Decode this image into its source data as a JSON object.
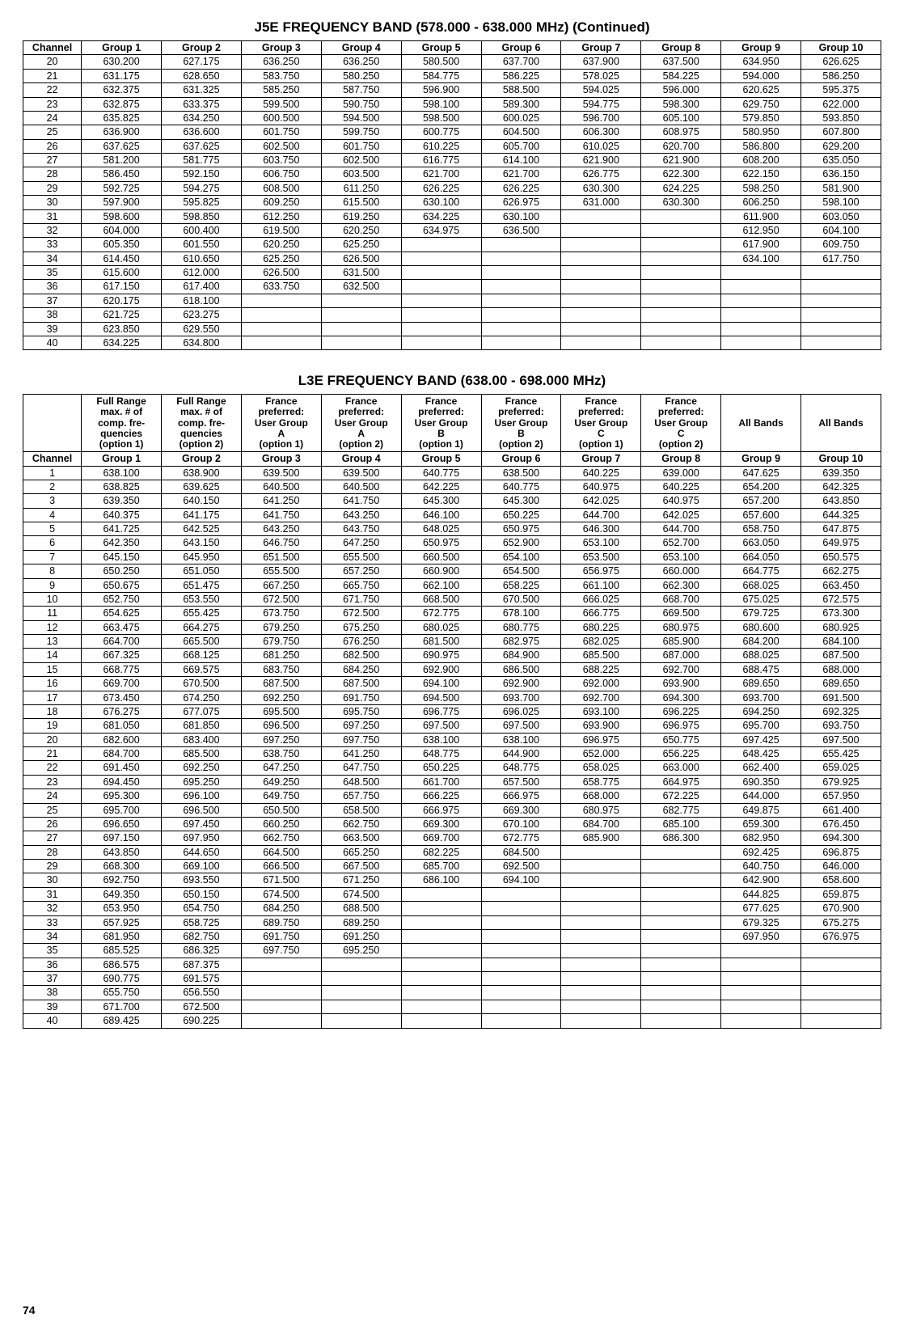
{
  "page_number": "74",
  "table1": {
    "title": "J5E FREQUENCY BAND (578.000 - 638.000 MHz) (Continued)",
    "headers": [
      "Channel",
      "Group 1",
      "Group 2",
      "Group 3",
      "Group 4",
      "Group 5",
      "Group 6",
      "Group 7",
      "Group 8",
      "Group 9",
      "Group 10"
    ],
    "rows": [
      [
        "20",
        "630.200",
        "627.175",
        "636.250",
        "636.250",
        "580.500",
        "637.700",
        "637.900",
        "637.500",
        "634.950",
        "626.625"
      ],
      [
        "21",
        "631.175",
        "628.650",
        "583.750",
        "580.250",
        "584.775",
        "586.225",
        "578.025",
        "584.225",
        "594.000",
        "586.250"
      ],
      [
        "22",
        "632.375",
        "631.325",
        "585.250",
        "587.750",
        "596.900",
        "588.500",
        "594.025",
        "596.000",
        "620.625",
        "595.375"
      ],
      [
        "23",
        "632.875",
        "633.375",
        "599.500",
        "590.750",
        "598.100",
        "589.300",
        "594.775",
        "598.300",
        "629.750",
        "622.000"
      ],
      [
        "24",
        "635.825",
        "634.250",
        "600.500",
        "594.500",
        "598.500",
        "600.025",
        "596.700",
        "605.100",
        "579.850",
        "593.850"
      ],
      [
        "25",
        "636.900",
        "636.600",
        "601.750",
        "599.750",
        "600.775",
        "604.500",
        "606.300",
        "608.975",
        "580.950",
        "607.800"
      ],
      [
        "26",
        "637.625",
        "637.625",
        "602.500",
        "601.750",
        "610.225",
        "605.700",
        "610.025",
        "620.700",
        "586.800",
        "629.200"
      ],
      [
        "27",
        "581.200",
        "581.775",
        "603.750",
        "602.500",
        "616.775",
        "614.100",
        "621.900",
        "621.900",
        "608.200",
        "635.050"
      ],
      [
        "28",
        "586.450",
        "592.150",
        "606.750",
        "603.500",
        "621.700",
        "621.700",
        "626.775",
        "622.300",
        "622.150",
        "636.150"
      ],
      [
        "29",
        "592.725",
        "594.275",
        "608.500",
        "611.250",
        "626.225",
        "626.225",
        "630.300",
        "624.225",
        "598.250",
        "581.900"
      ],
      [
        "30",
        "597.900",
        "595.825",
        "609.250",
        "615.500",
        "630.100",
        "626.975",
        "631.000",
        "630.300",
        "606.250",
        "598.100"
      ],
      [
        "31",
        "598.600",
        "598.850",
        "612.250",
        "619.250",
        "634.225",
        "630.100",
        "",
        "",
        "611.900",
        "603.050"
      ],
      [
        "32",
        "604.000",
        "600.400",
        "619.500",
        "620.250",
        "634.975",
        "636.500",
        "",
        "",
        "612.950",
        "604.100"
      ],
      [
        "33",
        "605.350",
        "601.550",
        "620.250",
        "625.250",
        "",
        "",
        "",
        "",
        "617.900",
        "609.750"
      ],
      [
        "34",
        "614.450",
        "610.650",
        "625.250",
        "626.500",
        "",
        "",
        "",
        "",
        "634.100",
        "617.750"
      ],
      [
        "35",
        "615.600",
        "612.000",
        "626.500",
        "631.500",
        "",
        "",
        "",
        "",
        "",
        ""
      ],
      [
        "36",
        "617.150",
        "617.400",
        "633.750",
        "632.500",
        "",
        "",
        "",
        "",
        "",
        ""
      ],
      [
        "37",
        "620.175",
        "618.100",
        "",
        "",
        "",
        "",
        "",
        "",
        "",
        ""
      ],
      [
        "38",
        "621.725",
        "623.275",
        "",
        "",
        "",
        "",
        "",
        "",
        "",
        ""
      ],
      [
        "39",
        "623.850",
        "629.550",
        "",
        "",
        "",
        "",
        "",
        "",
        "",
        ""
      ],
      [
        "40",
        "634.225",
        "634.800",
        "",
        "",
        "",
        "",
        "",
        "",
        "",
        ""
      ]
    ]
  },
  "table2": {
    "title": "L3E FREQUENCY BAND (638.00 - 698.000 MHz)",
    "top_headers": [
      "",
      "Full Range max. # of comp. fre- quencies (option 1)",
      "Full Range max. # of comp. fre- quencies (option 2)",
      "France preferred: User Group A (option 1)",
      "France preferred: User Group A (option 2)",
      "France preferred: User Group B (option 1)",
      "France preferred: User Group B (option 2)",
      "France preferred: User Group C (option 1)",
      "France preferred: User Group C (option 2)",
      "All Bands",
      "All Bands"
    ],
    "headers": [
      "Channel",
      "Group 1",
      "Group 2",
      "Group 3",
      "Group 4",
      "Group 5",
      "Group 6",
      "Group 7",
      "Group 8",
      "Group 9",
      "Group 10"
    ],
    "rows": [
      [
        "1",
        "638.100",
        "638.900",
        "639.500",
        "639.500",
        "640.775",
        "638.500",
        "640.225",
        "639.000",
        "647.625",
        "639.350"
      ],
      [
        "2",
        "638.825",
        "639.625",
        "640.500",
        "640.500",
        "642.225",
        "640.775",
        "640.975",
        "640.225",
        "654.200",
        "642.325"
      ],
      [
        "3",
        "639.350",
        "640.150",
        "641.250",
        "641.750",
        "645.300",
        "645.300",
        "642.025",
        "640.975",
        "657.200",
        "643.850"
      ],
      [
        "4",
        "640.375",
        "641.175",
        "641.750",
        "643.250",
        "646.100",
        "650.225",
        "644.700",
        "642.025",
        "657.600",
        "644.325"
      ],
      [
        "5",
        "641.725",
        "642.525",
        "643.250",
        "643.750",
        "648.025",
        "650.975",
        "646.300",
        "644.700",
        "658.750",
        "647.875"
      ],
      [
        "6",
        "642.350",
        "643.150",
        "646.750",
        "647.250",
        "650.975",
        "652.900",
        "653.100",
        "652.700",
        "663.050",
        "649.975"
      ],
      [
        "7",
        "645.150",
        "645.950",
        "651.500",
        "655.500",
        "660.500",
        "654.100",
        "653.500",
        "653.100",
        "664.050",
        "650.575"
      ],
      [
        "8",
        "650.250",
        "651.050",
        "655.500",
        "657.250",
        "660.900",
        "654.500",
        "656.975",
        "660.000",
        "664.775",
        "662.275"
      ],
      [
        "9",
        "650.675",
        "651.475",
        "667.250",
        "665.750",
        "662.100",
        "658.225",
        "661.100",
        "662.300",
        "668.025",
        "663.450"
      ],
      [
        "10",
        "652.750",
        "653.550",
        "672.500",
        "671.750",
        "668.500",
        "670.500",
        "666.025",
        "668.700",
        "675.025",
        "672.575"
      ],
      [
        "11",
        "654.625",
        "655.425",
        "673.750",
        "672.500",
        "672.775",
        "678.100",
        "666.775",
        "669.500",
        "679.725",
        "673.300"
      ],
      [
        "12",
        "663.475",
        "664.275",
        "679.250",
        "675.250",
        "680.025",
        "680.775",
        "680.225",
        "680.975",
        "680.600",
        "680.925"
      ],
      [
        "13",
        "664.700",
        "665.500",
        "679.750",
        "676.250",
        "681.500",
        "682.975",
        "682.025",
        "685.900",
        "684.200",
        "684.100"
      ],
      [
        "14",
        "667.325",
        "668.125",
        "681.250",
        "682.500",
        "690.975",
        "684.900",
        "685.500",
        "687.000",
        "688.025",
        "687.500"
      ],
      [
        "15",
        "668.775",
        "669.575",
        "683.750",
        "684.250",
        "692.900",
        "686.500",
        "688.225",
        "692.700",
        "688.475",
        "688.000"
      ],
      [
        "16",
        "669.700",
        "670.500",
        "687.500",
        "687.500",
        "694.100",
        "692.900",
        "692.000",
        "693.900",
        "689.650",
        "689.650"
      ],
      [
        "17",
        "673.450",
        "674.250",
        "692.250",
        "691.750",
        "694.500",
        "693.700",
        "692.700",
        "694.300",
        "693.700",
        "691.500"
      ],
      [
        "18",
        "676.275",
        "677.075",
        "695.500",
        "695.750",
        "696.775",
        "696.025",
        "693.100",
        "696.225",
        "694.250",
        "692.325"
      ],
      [
        "19",
        "681.050",
        "681.850",
        "696.500",
        "697.250",
        "697.500",
        "697.500",
        "693.900",
        "696.975",
        "695.700",
        "693.750"
      ],
      [
        "20",
        "682.600",
        "683.400",
        "697.250",
        "697.750",
        "638.100",
        "638.100",
        "696.975",
        "650.775",
        "697.425",
        "697.500"
      ],
      [
        "21",
        "684.700",
        "685.500",
        "638.750",
        "641.250",
        "648.775",
        "644.900",
        "652.000",
        "656.225",
        "648.425",
        "655.425"
      ],
      [
        "22",
        "691.450",
        "692.250",
        "647.250",
        "647.750",
        "650.225",
        "648.775",
        "658.025",
        "663.000",
        "662.400",
        "659.025"
      ],
      [
        "23",
        "694.450",
        "695.250",
        "649.250",
        "648.500",
        "661.700",
        "657.500",
        "658.775",
        "664.975",
        "690.350",
        "679.925"
      ],
      [
        "24",
        "695.300",
        "696.100",
        "649.750",
        "657.750",
        "666.225",
        "666.975",
        "668.000",
        "672.225",
        "644.000",
        "657.950"
      ],
      [
        "25",
        "695.700",
        "696.500",
        "650.500",
        "658.500",
        "666.975",
        "669.300",
        "680.975",
        "682.775",
        "649.875",
        "661.400"
      ],
      [
        "26",
        "696.650",
        "697.450",
        "660.250",
        "662.750",
        "669.300",
        "670.100",
        "684.700",
        "685.100",
        "659.300",
        "676.450"
      ],
      [
        "27",
        "697.150",
        "697.950",
        "662.750",
        "663.500",
        "669.700",
        "672.775",
        "685.900",
        "686.300",
        "682.950",
        "694.300"
      ],
      [
        "28",
        "643.850",
        "644.650",
        "664.500",
        "665.250",
        "682.225",
        "684.500",
        "",
        "",
        "692.425",
        "696.875"
      ],
      [
        "29",
        "668.300",
        "669.100",
        "666.500",
        "667.500",
        "685.700",
        "692.500",
        "",
        "",
        "640.750",
        "646.000"
      ],
      [
        "30",
        "692.750",
        "693.550",
        "671.500",
        "671.250",
        "686.100",
        "694.100",
        "",
        "",
        "642.900",
        "658.600"
      ],
      [
        "31",
        "649.350",
        "650.150",
        "674.500",
        "674.500",
        "",
        "",
        "",
        "",
        "644.825",
        "659.875"
      ],
      [
        "32",
        "653.950",
        "654.750",
        "684.250",
        "688.500",
        "",
        "",
        "",
        "",
        "677.625",
        "670.900"
      ],
      [
        "33",
        "657.925",
        "658.725",
        "689.750",
        "689.250",
        "",
        "",
        "",
        "",
        "679.325",
        "675.275"
      ],
      [
        "34",
        "681.950",
        "682.750",
        "691.750",
        "691.250",
        "",
        "",
        "",
        "",
        "697.950",
        "676.975"
      ],
      [
        "35",
        "685.525",
        "686.325",
        "697.750",
        "695.250",
        "",
        "",
        "",
        "",
        "",
        ""
      ],
      [
        "36",
        "686.575",
        "687.375",
        "",
        "",
        "",
        "",
        "",
        "",
        "",
        ""
      ],
      [
        "37",
        "690.775",
        "691.575",
        "",
        "",
        "",
        "",
        "",
        "",
        "",
        ""
      ],
      [
        "38",
        "655.750",
        "656.550",
        "",
        "",
        "",
        "",
        "",
        "",
        "",
        ""
      ],
      [
        "39",
        "671.700",
        "672.500",
        "",
        "",
        "",
        "",
        "",
        "",
        "",
        ""
      ],
      [
        "40",
        "689.425",
        "690.225",
        "",
        "",
        "",
        "",
        "",
        "",
        "",
        ""
      ]
    ]
  }
}
